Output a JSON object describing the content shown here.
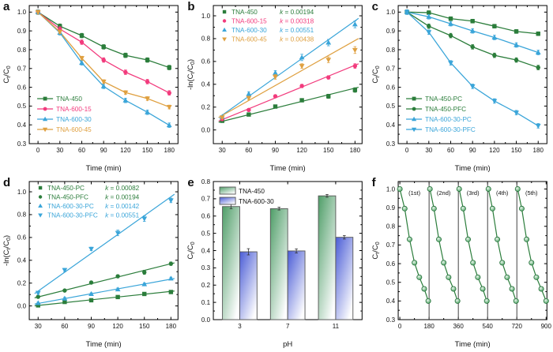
{
  "chart_data": [
    {
      "panel_label": "a",
      "type": "line",
      "xlabel": "Time (min)",
      "ylabel": "C_t/C_0",
      "xlim": [
        -12,
        192
      ],
      "ylim": [
        0.3,
        1.035
      ],
      "xticks": [
        0,
        30,
        60,
        90,
        120,
        150,
        180
      ],
      "xtick_labels": [
        "0",
        "30",
        "60",
        "90",
        "120",
        "150",
        "180"
      ],
      "yticks": [
        0.3,
        0.4,
        0.5,
        0.6,
        0.7,
        0.8,
        0.9,
        1.0
      ],
      "ytick_labels": [
        "0.3",
        "0.4",
        "0.5",
        "0.6",
        "0.7",
        "0.8",
        "0.9",
        "1.0"
      ],
      "legend_pos": "bottom-left",
      "grid": "off",
      "series": [
        {
          "name": "TNA-450",
          "color": "#2b7d3b",
          "marker": "square",
          "err": 0.012,
          "x": [
            0,
            30,
            60,
            90,
            120,
            150,
            180
          ],
          "y": [
            1.0,
            0.925,
            0.875,
            0.815,
            0.77,
            0.745,
            0.705
          ]
        },
        {
          "name": "TNA-600-15",
          "color": "#f23b7d",
          "marker": "circle",
          "err": 0.012,
          "x": [
            0,
            30,
            60,
            90,
            120,
            150,
            180
          ],
          "y": [
            1.0,
            0.91,
            0.84,
            0.745,
            0.68,
            0.63,
            0.57
          ]
        },
        {
          "name": "TNA-600-30",
          "color": "#3aa5d9",
          "marker": "triangle-up",
          "err": 0.012,
          "x": [
            0,
            30,
            60,
            90,
            120,
            150,
            180
          ],
          "y": [
            1.0,
            0.89,
            0.73,
            0.605,
            0.53,
            0.467,
            0.398
          ]
        },
        {
          "name": "TNA-600-45",
          "color": "#dfa040",
          "marker": "triangle-down",
          "err": 0.01,
          "x": [
            0,
            30,
            60,
            90,
            120,
            150,
            180
          ],
          "y": [
            1.0,
            0.895,
            0.755,
            0.63,
            0.572,
            0.54,
            0.495
          ]
        }
      ]
    },
    {
      "panel_label": "b",
      "type": "kinetics",
      "xlabel": "Time (min)",
      "ylabel": "-ln(C_t/C_0)",
      "xlim": [
        20,
        188
      ],
      "ylim": [
        -0.12,
        1.09
      ],
      "xticks": [
        30,
        60,
        90,
        120,
        150,
        180
      ],
      "xtick_labels": [
        "30",
        "60",
        "90",
        "120",
        "150",
        "180"
      ],
      "yticks": [
        0.0,
        0.2,
        0.4,
        0.6,
        0.8,
        1.0
      ],
      "ytick_labels": [
        "0.0",
        "0.2",
        "0.4",
        "0.6",
        "0.8",
        "1.0"
      ],
      "legend_pos": "top-left",
      "grid": "off",
      "series": [
        {
          "name": "TNA-450",
          "k_label": "k = 0.00194",
          "color": "#2b7d3b",
          "marker": "square",
          "x": [
            30,
            60,
            90,
            120,
            150,
            180
          ],
          "y": [
            0.08,
            0.135,
            0.205,
            0.26,
            0.295,
            0.35
          ],
          "errs": [
            0.01,
            0.01,
            0.012,
            0.012,
            0.018,
            0.02
          ]
        },
        {
          "name": "TNA-600-15",
          "k_label": "k = 0.00318",
          "color": "#f23b7d",
          "marker": "circle",
          "x": [
            30,
            60,
            90,
            120,
            150,
            180
          ],
          "y": [
            0.095,
            0.175,
            0.295,
            0.385,
            0.46,
            0.56
          ],
          "errs": [
            0.01,
            0.012,
            0.012,
            0.015,
            0.015,
            0.02
          ]
        },
        {
          "name": "TNA-600-30",
          "k_label": "k = 0.00551",
          "color": "#3aa5d9",
          "marker": "triangle-up",
          "x": [
            30,
            60,
            90,
            120,
            150,
            180
          ],
          "y": [
            0.115,
            0.315,
            0.5,
            0.635,
            0.765,
            0.925
          ],
          "errs": [
            0.012,
            0.02,
            0.02,
            0.028,
            0.028,
            0.03
          ]
        },
        {
          "name": "TNA-600-45",
          "k_label": "k = 0.00438",
          "color": "#dfa040",
          "marker": "triangle-down",
          "x": [
            30,
            60,
            90,
            120,
            150,
            180
          ],
          "y": [
            0.11,
            0.28,
            0.465,
            0.56,
            0.615,
            0.7
          ],
          "errs": [
            0.012,
            0.015,
            0.02,
            0.02,
            0.025,
            0.03
          ]
        }
      ]
    },
    {
      "panel_label": "c",
      "type": "line",
      "xlabel": "Time (min)",
      "ylabel": "C_t/C_0",
      "xlim": [
        -12,
        192
      ],
      "ylim": [
        0.3,
        1.035
      ],
      "xticks": [
        0,
        30,
        60,
        90,
        120,
        150,
        180
      ],
      "xtick_labels": [
        "0",
        "30",
        "60",
        "90",
        "120",
        "150",
        "180"
      ],
      "yticks": [
        0.3,
        0.4,
        0.5,
        0.6,
        0.7,
        0.8,
        0.9,
        1.0
      ],
      "ytick_labels": [
        "0.3",
        "0.4",
        "0.5",
        "0.6",
        "0.7",
        "0.8",
        "0.9",
        "1.0"
      ],
      "legend_pos": "bottom-left",
      "grid": "off",
      "series": [
        {
          "name": "TNA-450-PC",
          "color": "#2b7d3b",
          "marker": "square",
          "err": 0.01,
          "x": [
            0,
            30,
            60,
            90,
            120,
            150,
            180
          ],
          "y": [
            1.0,
            0.997,
            0.965,
            0.952,
            0.925,
            0.897,
            0.885
          ]
        },
        {
          "name": "TNA-450-PFC",
          "color": "#2b7d3b",
          "marker": "circle",
          "err": 0.012,
          "x": [
            0,
            30,
            60,
            90,
            120,
            150,
            180
          ],
          "y": [
            1.0,
            0.925,
            0.875,
            0.815,
            0.77,
            0.745,
            0.705
          ]
        },
        {
          "name": "TNA-600-30-PC",
          "color": "#3aa5d9",
          "marker": "triangle-up",
          "err": 0.012,
          "x": [
            0,
            30,
            60,
            90,
            120,
            150,
            180
          ],
          "y": [
            1.0,
            0.975,
            0.938,
            0.9,
            0.865,
            0.825,
            0.785
          ]
        },
        {
          "name": "TNA-600-30-PFC",
          "color": "#3aa5d9",
          "marker": "triangle-down",
          "err": 0.012,
          "x": [
            0,
            30,
            60,
            90,
            120,
            150,
            180
          ],
          "y": [
            1.0,
            0.893,
            0.73,
            0.605,
            0.527,
            0.465,
            0.395
          ]
        }
      ]
    },
    {
      "panel_label": "d",
      "type": "kinetics",
      "xlabel": "Time (min)",
      "ylabel": "-ln(C_t/C_0)",
      "xlim": [
        20,
        188
      ],
      "ylim": [
        -0.12,
        1.09
      ],
      "xticks": [
        30,
        60,
        90,
        120,
        150,
        180
      ],
      "xtick_labels": [
        "30",
        "60",
        "90",
        "120",
        "150",
        "180"
      ],
      "yticks": [
        0.0,
        0.2,
        0.4,
        0.6,
        0.8,
        1.0
      ],
      "ytick_labels": [
        "0.0",
        "0.2",
        "0.4",
        "0.6",
        "0.8",
        "1.0"
      ],
      "legend_pos": "top-left",
      "grid": "off",
      "series": [
        {
          "name": "TNA-450-PC",
          "k_label": "k = 0.00082",
          "color": "#2b7d3b",
          "marker": "square",
          "x": [
            30,
            60,
            90,
            120,
            150,
            180
          ],
          "y": [
            0.005,
            0.035,
            0.05,
            0.078,
            0.105,
            0.122
          ],
          "errs": [
            0.006,
            0.006,
            0.008,
            0.008,
            0.008,
            0.01
          ]
        },
        {
          "name": "TNA-450-PFC",
          "k_label": "k = 0.00194",
          "color": "#2b7d3b",
          "marker": "circle",
          "x": [
            30,
            60,
            90,
            120,
            150,
            180
          ],
          "y": [
            0.08,
            0.135,
            0.205,
            0.26,
            0.295,
            0.37
          ],
          "errs": [
            0.008,
            0.01,
            0.012,
            0.012,
            0.018,
            0.015
          ]
        },
        {
          "name": "TNA-600-30-PC",
          "k_label": "k = 0.00142",
          "color": "#3aa5d9",
          "marker": "triangle-up",
          "x": [
            30,
            60,
            90,
            120,
            150,
            180
          ],
          "y": [
            0.025,
            0.065,
            0.105,
            0.145,
            0.19,
            0.24
          ],
          "errs": [
            0.008,
            0.01,
            0.01,
            0.012,
            0.012,
            0.012
          ]
        },
        {
          "name": "TNA-600-30-PFC",
          "k_label": "k = 0.00551",
          "color": "#3aa5d9",
          "marker": "triangle-down",
          "x": [
            30,
            60,
            90,
            120,
            150,
            180
          ],
          "y": [
            0.115,
            0.315,
            0.5,
            0.64,
            0.765,
            0.925
          ],
          "errs": [
            0.012,
            0.015,
            0.015,
            0.025,
            0.025,
            0.02
          ]
        }
      ]
    },
    {
      "panel_label": "e",
      "type": "bar",
      "xlabel": "pH",
      "ylabel": "C_t/C_0",
      "xlim": [
        0.45,
        3.55
      ],
      "ylim": [
        0.0,
        0.8
      ],
      "categories": [
        "3",
        "7",
        "11"
      ],
      "xtick_labels": [
        "3",
        "7",
        "11"
      ],
      "yticks": [
        0.0,
        0.1,
        0.2,
        0.3,
        0.4,
        0.5,
        0.6,
        0.7,
        0.8
      ],
      "ytick_labels": [
        "0.0",
        "0.1",
        "0.2",
        "0.3",
        "0.4",
        "0.5",
        "0.6",
        "0.7",
        "0.8"
      ],
      "legend_pos": "top-left",
      "grid": "off",
      "bar_edge_color": "#555555",
      "series": [
        {
          "name": "TNA-450",
          "color": "#4f9e68",
          "values": [
            0.655,
            0.643,
            0.717
          ],
          "errors": [
            0.012,
            0.008,
            0.008
          ]
        },
        {
          "name": "TNA-600-30",
          "color": "#4a5cd6",
          "values": [
            0.393,
            0.398,
            0.477
          ],
          "errors": [
            0.018,
            0.012,
            0.01
          ]
        }
      ]
    },
    {
      "panel_label": "f",
      "type": "cycles",
      "xlabel": "Time (min)",
      "ylabel": "C_t/C_0",
      "xlim": [
        -10,
        905
      ],
      "ylim": [
        0.3,
        1.04
      ],
      "xticks": [
        0,
        180,
        360,
        540,
        720,
        900
      ],
      "xtick_labels": [
        "0",
        "180",
        "360",
        "540",
        "720",
        "900"
      ],
      "yticks": [
        0.3,
        0.4,
        0.5,
        0.6,
        0.7,
        0.8,
        0.9,
        1.0
      ],
      "ytick_labels": [
        "0.3",
        "0.4",
        "0.5",
        "0.6",
        "0.7",
        "0.8",
        "0.9",
        "1.0"
      ],
      "legend_pos": "none",
      "grid": "off",
      "color": "#2b7d3b",
      "cycle_labels": [
        "(1st)",
        "(2nd)",
        "(3rd)",
        "(4th)",
        "(5th)"
      ],
      "cycle_span": 180,
      "separators": [
        180,
        360,
        540,
        720
      ],
      "offsets": [
        0,
        30,
        60,
        90,
        120,
        150,
        180
      ],
      "values": [
        1.0,
        0.895,
        0.73,
        0.605,
        0.527,
        0.465,
        0.4
      ]
    }
  ]
}
